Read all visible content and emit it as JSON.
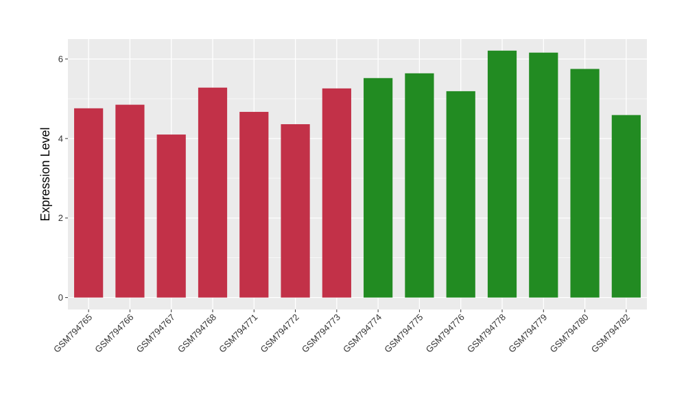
{
  "chart_data": {
    "type": "bar",
    "title": "",
    "xlabel": "",
    "ylabel": "Expression Level",
    "ylim": [
      -0.3,
      6.5
    ],
    "yticks": [
      0,
      2,
      4,
      6
    ],
    "grid": true,
    "panel_background": "#ebebeb",
    "grid_color": "#ffffff",
    "categories": [
      "GSM794765",
      "GSM794766",
      "GSM794767",
      "GSM794768",
      "GSM794771",
      "GSM794772",
      "GSM794773",
      "GSM794774",
      "GSM794775",
      "GSM794776",
      "GSM794778",
      "GSM794779",
      "GSM794780",
      "GSM794782"
    ],
    "values": [
      4.76,
      4.85,
      4.1,
      5.28,
      4.67,
      4.36,
      5.26,
      5.52,
      5.64,
      5.19,
      6.21,
      6.16,
      5.75,
      4.59
    ],
    "colors": [
      "#c23148",
      "#c23148",
      "#c23148",
      "#c23148",
      "#c23148",
      "#c23148",
      "#c23148",
      "#228b22",
      "#228b22",
      "#228b22",
      "#228b22",
      "#228b22",
      "#228b22",
      "#228b22"
    ]
  }
}
